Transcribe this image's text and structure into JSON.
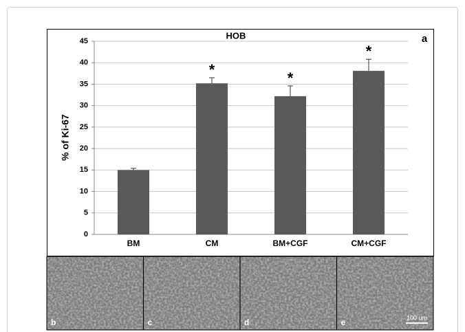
{
  "chart_data": {
    "type": "bar",
    "title": "HOB",
    "panel_label": "a",
    "ylabel": "% of Ki-67",
    "categories": [
      "BM",
      "CM",
      "BM+CGF",
      "CM+CGF"
    ],
    "values": [
      15,
      35.2,
      32.2,
      38.1
    ],
    "errors": [
      0.4,
      1.3,
      2.4,
      2.7
    ],
    "significance": [
      null,
      "*",
      "*",
      "*"
    ],
    "color": "#595959",
    "ylim": [
      0,
      45
    ],
    "yticks": [
      0,
      5,
      10,
      15,
      20,
      25,
      30,
      35,
      40,
      45
    ],
    "grid": true
  },
  "images": {
    "panels": [
      "b",
      "c",
      "d",
      "e"
    ],
    "scale_bar": "100 um"
  }
}
